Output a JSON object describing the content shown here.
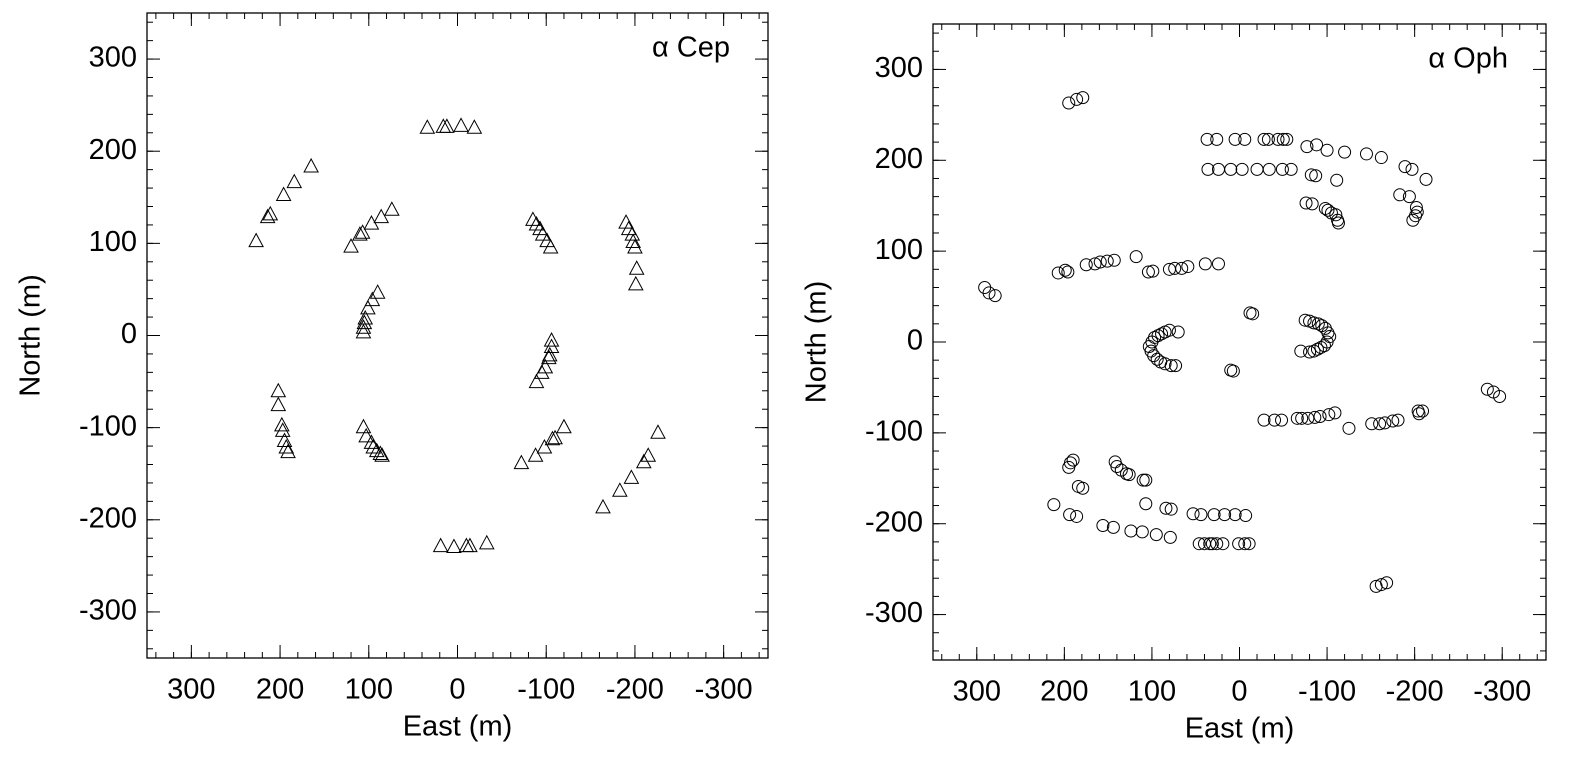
{
  "chart_data": [
    {
      "type": "scatter",
      "title": "α Cep",
      "xlabel": "East (m)",
      "ylabel": "North (m)",
      "marker": "triangle",
      "color": "#000000",
      "xlim": [
        350,
        -350
      ],
      "ylim": [
        -350,
        350
      ],
      "xticks": [
        300,
        200,
        100,
        0,
        -100,
        -200,
        -300
      ],
      "yticks": [
        -300,
        -200,
        -100,
        0,
        100,
        200,
        300
      ],
      "x": [
        34,
        16,
        12,
        -4,
        -19,
        227,
        214,
        211,
        196,
        184,
        165,
        120,
        110,
        107,
        97,
        86,
        74,
        -85,
        -89,
        -93,
        -96,
        -101,
        -105,
        -190,
        -193,
        -197,
        -198,
        -200,
        -202,
        -201,
        106,
        106,
        105,
        104,
        101,
        96,
        90,
        -106,
        -106,
        -104,
        -103,
        -99,
        -95,
        -89,
        202,
        202,
        198,
        197,
        195,
        193,
        191,
        106,
        103,
        97,
        95,
        91,
        87,
        85,
        19,
        4,
        -10,
        -14,
        -33,
        -72,
        -88,
        -98,
        -107,
        -110,
        -120,
        -164,
        -183,
        -196,
        -210,
        -215,
        -226
      ],
      "values": [
        226,
        227,
        227,
        228,
        226,
        103,
        129,
        132,
        153,
        167,
        184,
        97,
        110,
        112,
        122,
        129,
        137,
        126,
        121,
        116,
        110,
        103,
        96,
        123,
        116,
        110,
        102,
        96,
        73,
        56,
        4,
        9,
        14,
        19,
        30,
        39,
        47,
        -5,
        -12,
        -21,
        -24,
        -34,
        -40,
        -50,
        -60,
        -75,
        -97,
        -103,
        -114,
        -121,
        -126,
        -99,
        -109,
        -116,
        -121,
        -125,
        -128,
        -130,
        -228,
        -229,
        -228,
        -228,
        -225,
        -138,
        -130,
        -121,
        -112,
        -111,
        -99,
        -186,
        -168,
        -154,
        -137,
        -130,
        -105
      ]
    },
    {
      "type": "scatter",
      "title": "α Oph",
      "xlabel": "East (m)",
      "ylabel": "North (m)",
      "marker": "circle",
      "color": "#000000",
      "xlim": [
        350,
        -350
      ],
      "ylim": [
        -350,
        350
      ],
      "xticks": [
        300,
        200,
        100,
        0,
        -100,
        -200,
        -300
      ],
      "yticks": [
        -300,
        -200,
        -100,
        0,
        100,
        200,
        300
      ],
      "x": [
        195,
        186,
        179,
        37,
        26,
        5,
        -6,
        -28,
        -33,
        -44,
        -50,
        -54,
        -77,
        -88,
        -100,
        -120,
        -145,
        -162,
        -189,
        -197,
        36,
        24,
        10,
        -3,
        -20,
        -34,
        -49,
        -59,
        -82,
        -87,
        -111,
        -213,
        -76,
        -83,
        -98,
        -101,
        -105,
        -110,
        -112,
        -113,
        -183,
        -194,
        -202,
        -203,
        -201,
        -198,
        291,
        286,
        279,
        207,
        199,
        196,
        175,
        165,
        159,
        151,
        143,
        118,
        104,
        99,
        80,
        74,
        66,
        59,
        39,
        24,
        100,
        97,
        93,
        89,
        85,
        80,
        70,
        103,
        101,
        98,
        94,
        90,
        85,
        78,
        73,
        -100,
        -97,
        -93,
        -89,
        -85,
        -80,
        -70,
        -103,
        -101,
        -98,
        -94,
        -90,
        -85,
        -80,
        -75,
        -12,
        -15,
        10,
        7,
        -28,
        -40,
        -48,
        -66,
        -71,
        -78,
        -86,
        -92,
        -102,
        -109,
        -125,
        -151,
        -160,
        -166,
        -175,
        -181,
        -204,
        -205,
        -209,
        -283,
        -290,
        -297,
        195,
        193,
        190,
        184,
        179,
        212,
        194,
        186,
        156,
        144,
        124,
        111,
        95,
        79,
        107,
        84,
        78,
        53,
        44,
        29,
        17,
        5,
        -7,
        46,
        40,
        34,
        31,
        26,
        19,
        1,
        -6,
        -11,
        142,
        140,
        135,
        129,
        126,
        110,
        107,
        -156,
        -162,
        -168
      ],
      "values": [
        263,
        267,
        269,
        223,
        223,
        223,
        223,
        223,
        223,
        223,
        223,
        223,
        215,
        217,
        211,
        209,
        207,
        203,
        193,
        190,
        190,
        190,
        190,
        190,
        190,
        190,
        190,
        190,
        184,
        183,
        178,
        179,
        153,
        152,
        147,
        145,
        142,
        140,
        134,
        131,
        162,
        160,
        148,
        143,
        139,
        134,
        60,
        54,
        51,
        76,
        79,
        77,
        85,
        86,
        88,
        89,
        90,
        94,
        77,
        78,
        80,
        81,
        81,
        83,
        86,
        86,
        0,
        5,
        7,
        9,
        11,
        13,
        11,
        -5,
        -10,
        -15,
        -19,
        -22,
        -24,
        -26,
        -26,
        0,
        -4,
        -6,
        -8,
        -10,
        -11,
        -10,
        6,
        10,
        15,
        18,
        20,
        21,
        23,
        24,
        32,
        31,
        -31,
        -32,
        -86,
        -86,
        -86,
        -84,
        -84,
        -84,
        -83,
        -82,
        -80,
        -78,
        -95,
        -90,
        -90,
        -89,
        -87,
        -86,
        -76,
        -79,
        -76,
        -52,
        -55,
        -60,
        -138,
        -133,
        -130,
        -159,
        -161,
        -179,
        -190,
        -192,
        -202,
        -204,
        -208,
        -209,
        -212,
        -215,
        -178,
        -183,
        -184,
        -189,
        -190,
        -190,
        -190,
        -190,
        -191,
        -222,
        -222,
        -222,
        -222,
        -222,
        -222,
        -222,
        -222,
        -222,
        -132,
        -137,
        -141,
        -145,
        -146,
        -152,
        -152,
        -269,
        -267,
        -265
      ]
    }
  ]
}
